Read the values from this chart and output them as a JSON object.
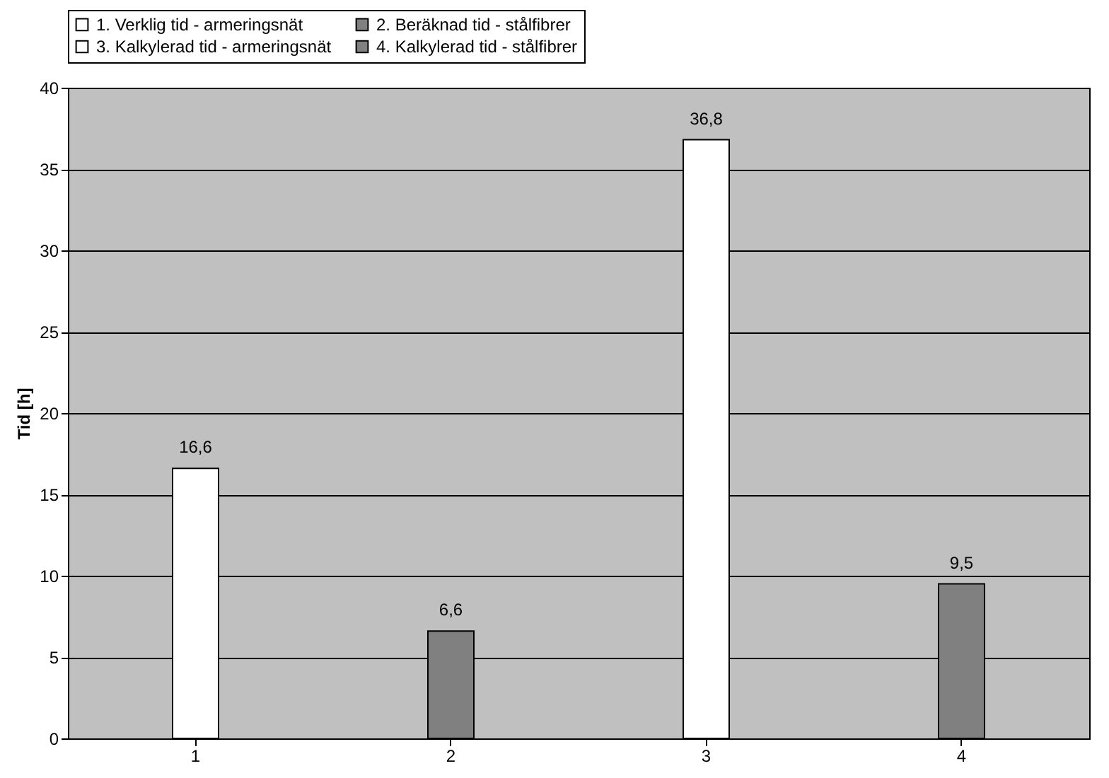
{
  "chart_data": {
    "type": "bar",
    "ylabel": "Tid [h]",
    "categories": [
      "1",
      "2",
      "3",
      "4"
    ],
    "series": [
      {
        "name": "1. Verklig tid - armeringsnät",
        "color": "#ffffff",
        "values": [
          16.6,
          null,
          null,
          null
        ],
        "value_labels": [
          "16,6",
          null,
          null,
          null
        ]
      },
      {
        "name": "2. Beräknad tid - stålfibrer",
        "color": "#808080",
        "values": [
          null,
          6.6,
          null,
          null
        ],
        "value_labels": [
          null,
          "6,6",
          null,
          null
        ]
      },
      {
        "name": "3. Kalkylerad tid - armeringsnät",
        "color": "#ffffff",
        "values": [
          null,
          null,
          36.8,
          null
        ],
        "value_labels": [
          null,
          null,
          "36,8",
          null
        ]
      },
      {
        "name": "4. Kalkylerad tid - stålfibrer",
        "color": "#808080",
        "values": [
          null,
          null,
          null,
          9.5
        ],
        "value_labels": [
          null,
          null,
          null,
          "9,5"
        ]
      }
    ],
    "ylim": [
      0,
      40
    ],
    "yticks": [
      0,
      5,
      10,
      15,
      20,
      25,
      30,
      35,
      40
    ],
    "grid": "y",
    "legend": "top"
  }
}
